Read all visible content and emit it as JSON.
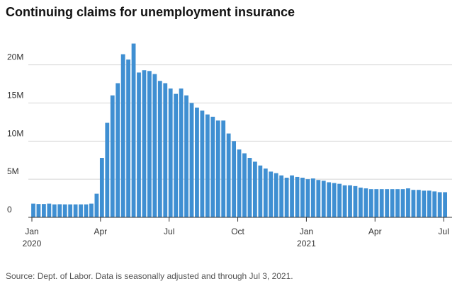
{
  "chart_data": {
    "type": "bar",
    "title": "Continuing claims for unemployment insurance",
    "source": "Source: Dept. of Labor. Data is seasonally adjusted and through Jul 3, 2021.",
    "categories": [
      "Jan",
      null,
      null,
      null,
      null,
      null,
      null,
      null,
      null,
      null,
      null,
      null,
      null,
      "Apr",
      null,
      null,
      null,
      null,
      null,
      null,
      null,
      null,
      null,
      null,
      null,
      null,
      "Jul",
      null,
      null,
      null,
      null,
      null,
      null,
      null,
      null,
      null,
      null,
      null,
      null,
      "Oct",
      null,
      null,
      null,
      null,
      null,
      null,
      null,
      null,
      null,
      null,
      null,
      null,
      "Jan",
      null,
      null,
      null,
      null,
      null,
      null,
      null,
      null,
      null,
      null,
      null,
      null,
      "Apr",
      null,
      null,
      null,
      null,
      null,
      null,
      null,
      null,
      null,
      null,
      null,
      null,
      "Jul"
    ],
    "year_labels": [
      "2020",
      null,
      null,
      null,
      null,
      null,
      null,
      null,
      null,
      null,
      null,
      null,
      null,
      null,
      null,
      null,
      null,
      null,
      null,
      null,
      null,
      null,
      null,
      null,
      null,
      null,
      null,
      null,
      null,
      null,
      null,
      null,
      null,
      null,
      null,
      null,
      null,
      null,
      null,
      null,
      null,
      null,
      null,
      null,
      null,
      null,
      null,
      null,
      null,
      null,
      null,
      null,
      "2021",
      null,
      null,
      null,
      null,
      null,
      null,
      null,
      null,
      null,
      null,
      null,
      null,
      null,
      null,
      null,
      null,
      null,
      null,
      null,
      null,
      null,
      null,
      null,
      null,
      null,
      null
    ],
    "values": [
      1.8,
      1.75,
      1.75,
      1.8,
      1.7,
      1.72,
      1.7,
      1.7,
      1.7,
      1.7,
      1.7,
      1.8,
      3.1,
      7.8,
      12.4,
      16.0,
      17.6,
      21.4,
      20.7,
      22.8,
      19.0,
      19.3,
      19.2,
      18.8,
      17.9,
      17.6,
      16.9,
      16.2,
      16.9,
      16.0,
      15.0,
      14.4,
      14.0,
      13.5,
      13.2,
      12.7,
      12.7,
      11.0,
      10.0,
      8.9,
      8.4,
      7.8,
      7.3,
      6.8,
      6.4,
      6.0,
      5.8,
      5.5,
      5.2,
      5.5,
      5.3,
      5.2,
      5.0,
      5.1,
      4.9,
      4.8,
      4.6,
      4.5,
      4.4,
      4.2,
      4.2,
      4.1,
      3.9,
      3.8,
      3.7,
      3.7,
      3.7,
      3.7,
      3.7,
      3.7,
      3.7,
      3.8,
      3.6,
      3.6,
      3.5,
      3.5,
      3.4,
      3.3,
      3.3
    ],
    "color": "#3f8fd2",
    "ylim": [
      0,
      23.5
    ],
    "yticks": [
      0,
      {
        "value": 5,
        "label": "5M"
      },
      {
        "value": 10,
        "label": "10M"
      },
      {
        "value": 15,
        "label": "15M"
      },
      {
        "value": 20,
        "label": "20M"
      }
    ],
    "grid": true
  }
}
